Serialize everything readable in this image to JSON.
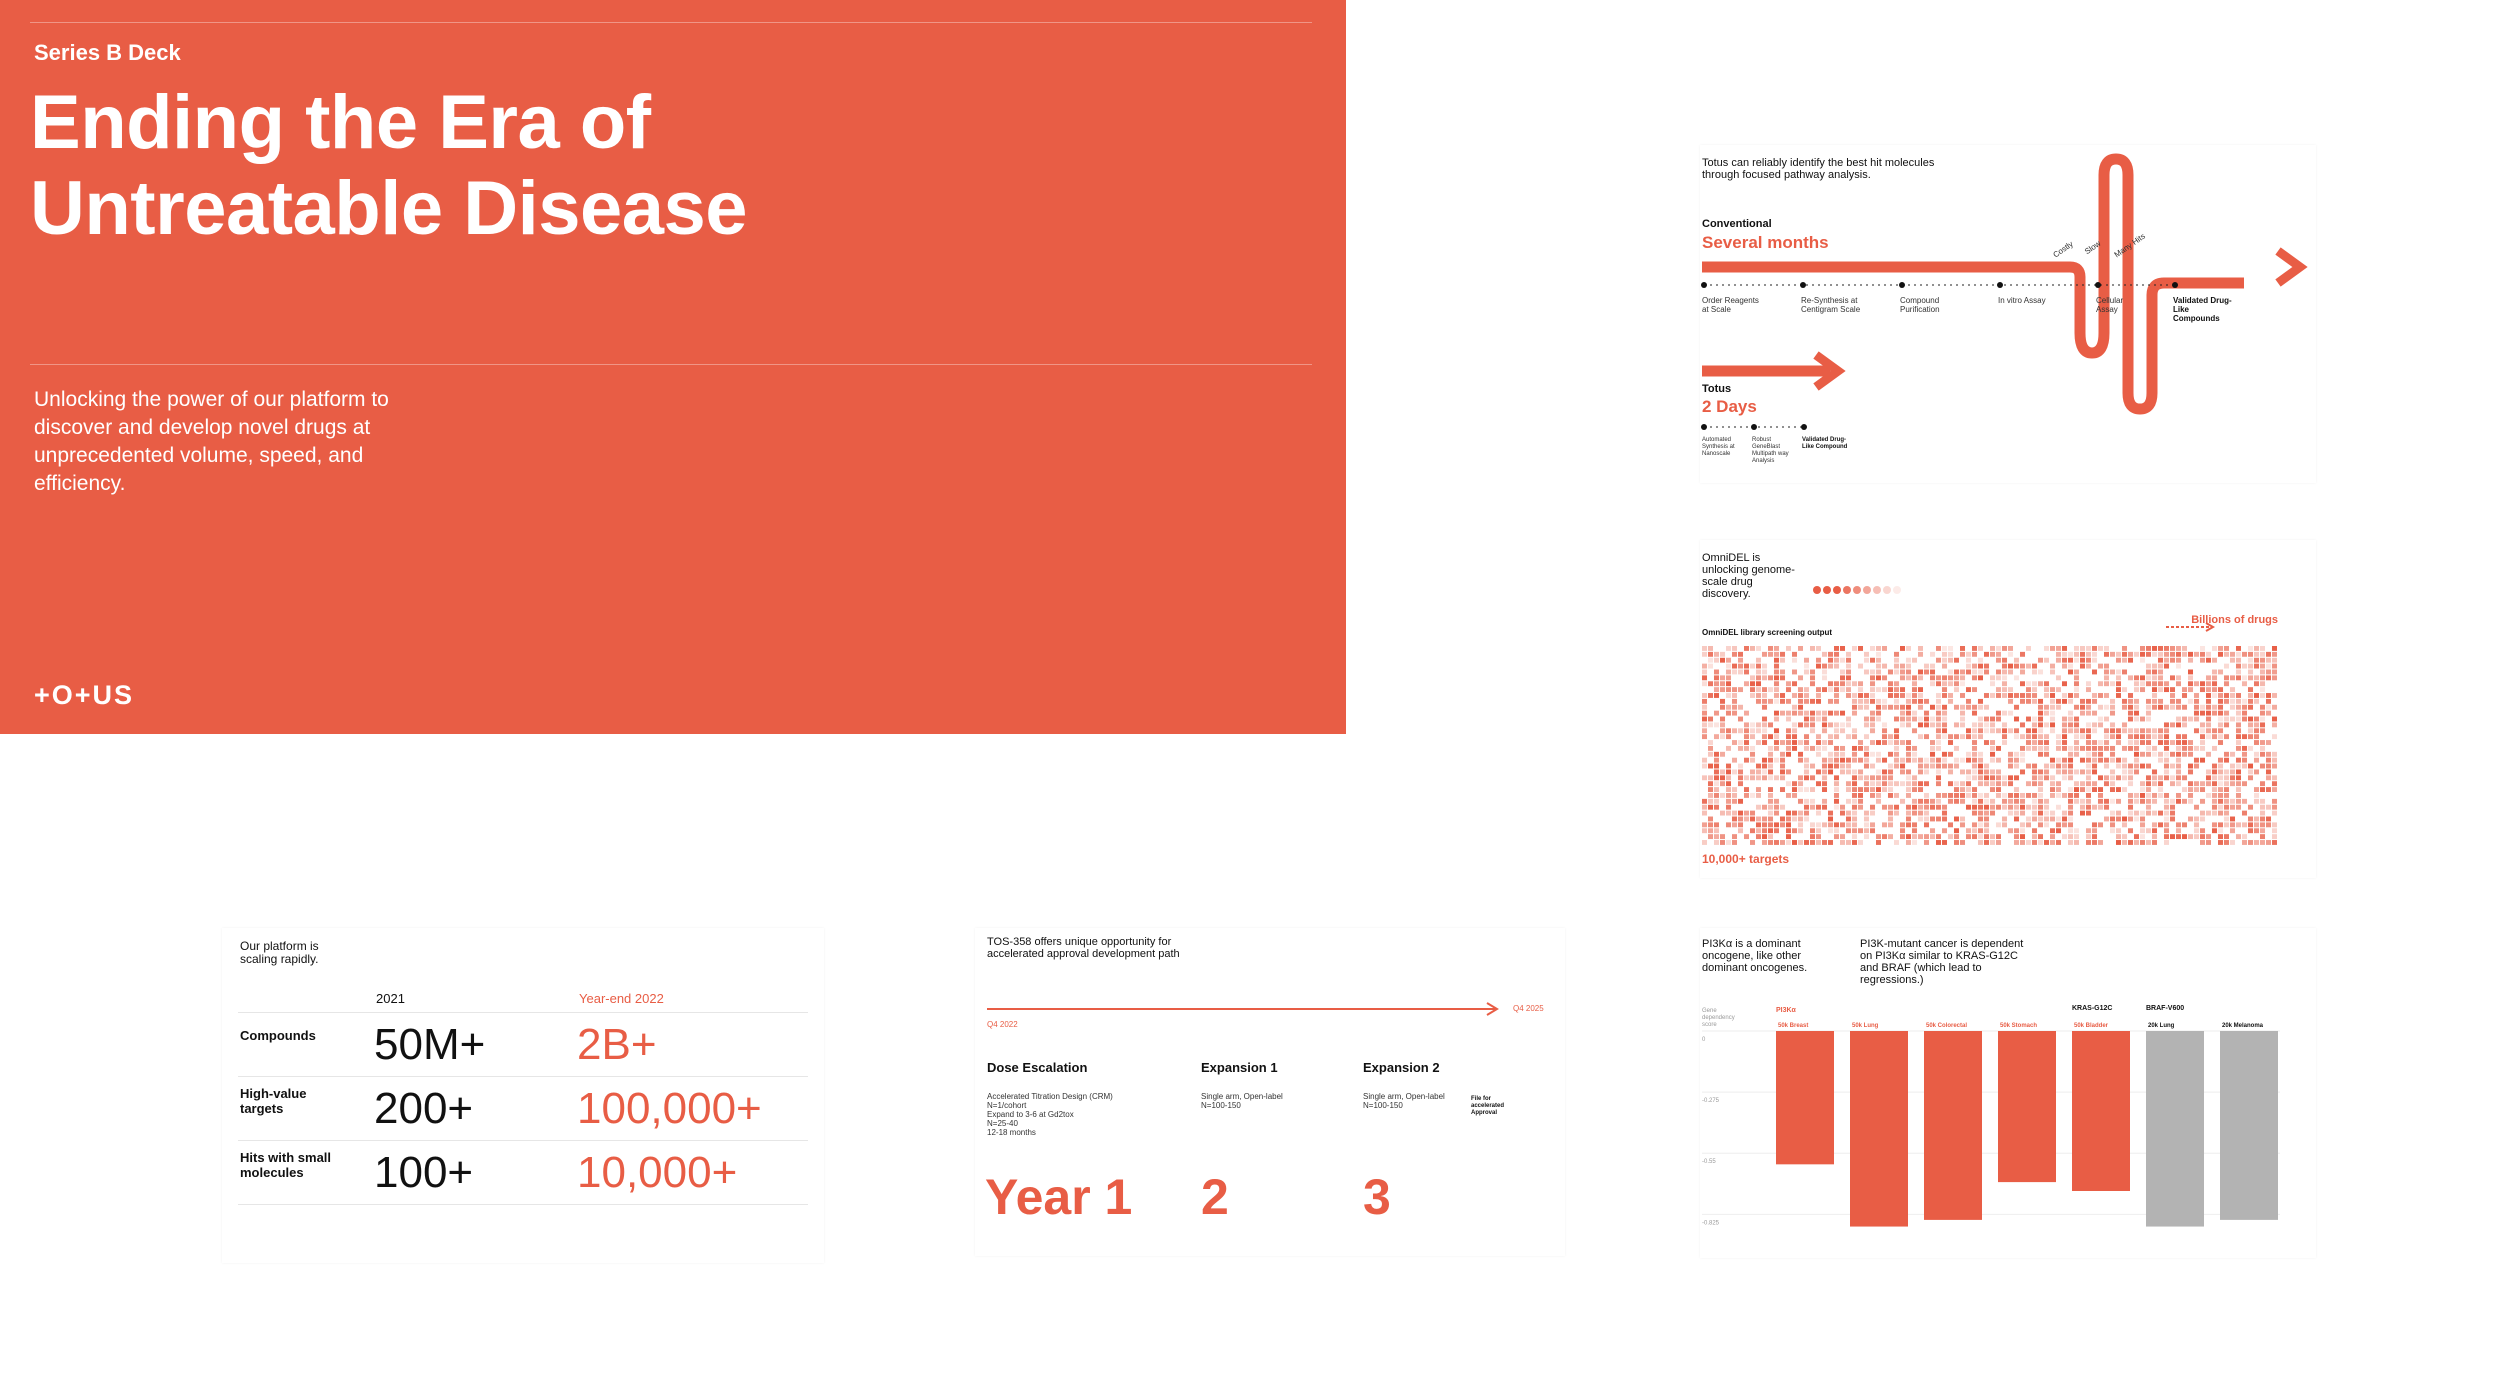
{
  "hero": {
    "eyebrow": "Series B Deck",
    "title_line1": "Ending the Era of",
    "title_line2": "Untreatable Disease",
    "subtitle": "Unlocking the power of our platform to discover and develop novel drugs at unprecedented volume, speed, and efficiency.",
    "logo": "+O+US"
  },
  "pathway": {
    "intro": "Totus can reliably identify the best hit molecules through focused pathway analysis.",
    "conventional_label": "Conventional",
    "conventional_time": "Several months",
    "steps": [
      "Order Reagents at Scale",
      "Re-Synthesis at Centigram Scale",
      "Compound Purification",
      "In vitro Assay",
      "Cellular Assay",
      "Validated Drug-Like Compounds"
    ],
    "curve_labels": [
      "Costly",
      "Slow",
      "Many Hits"
    ],
    "totus_label": "Totus",
    "totus_time": "2 Days",
    "totus_steps": [
      "Automated Synthesis at Nanoscale",
      "Robust GeneBlast Multipath way Analysis",
      "Validated Drug-Like Compound"
    ]
  },
  "omnidel": {
    "intro": "OmniDEL is unlocking genome-scale drug discovery.",
    "caption": "OmniDEL library screening output",
    "arrow_label": "Billions of drugs",
    "footer": "10,000+ targets",
    "orange": "#e85d45"
  },
  "stats": {
    "intro": "Our platform is scaling rapidly.",
    "col1": "2021",
    "col2": "Year-end 2022",
    "rows": [
      {
        "label": "Compounds",
        "v2021": "50M+",
        "v2022": "2B+"
      },
      {
        "label": "High-value targets",
        "v2021": "200+",
        "v2022": "100,000+"
      },
      {
        "label": "Hits with small molecules",
        "v2021": "100+",
        "v2022": "10,000+"
      }
    ]
  },
  "timeline": {
    "intro": "TOS-358 offers unique opportunity for accelerated approval development path",
    "start": "Q4 2022",
    "end": "Q4 2025",
    "phases": [
      {
        "title": "Dose Escalation",
        "detail": [
          "Accelerated Titration Design (CRM)",
          "N=1/cohort",
          "Expand to 3-6 at Gd2tox",
          "N=25-40",
          "12-18 months"
        ],
        "year": "Year 1"
      },
      {
        "title": "Expansion 1",
        "detail": [
          "Single arm, Open-label",
          "N=100-150"
        ],
        "year": "2"
      },
      {
        "title": "Expansion 2",
        "detail": [
          "Single arm, Open-label",
          "N=100-150"
        ],
        "year": "3"
      }
    ],
    "note": "File for accelerated Approval"
  },
  "pi3k": {
    "intro1": "PI3Kα is a dominant oncogene, like other dominant oncogenes.",
    "intro2": "PI3K-mutant cancer is dependent on PI3Kα similar to KRAS-G12C and BRAF (which lead to regressions.)",
    "group1": "PI3Kα",
    "group2": "KRAS-G12C",
    "group3": "BRAF-V600",
    "yaxis_title": "Gene dependency score",
    "yticks": [
      "0",
      "-0.275",
      "-0.55",
      "-0.825"
    ],
    "bars": [
      {
        "label": "50k Breast",
        "value": -0.6,
        "color": "#e85d45"
      },
      {
        "label": "50k Lung",
        "value": -0.88,
        "color": "#e85d45"
      },
      {
        "label": "50k Colorectal",
        "value": -0.85,
        "color": "#e85d45"
      },
      {
        "label": "50k Stomach",
        "value": -0.68,
        "color": "#e85d45"
      },
      {
        "label": "50k Bladder",
        "value": -0.72,
        "color": "#e85d45"
      },
      {
        "label": "20k Lung",
        "value": -0.88,
        "color": "#b3b3b3"
      },
      {
        "label": "20k Melanoma",
        "value": -0.85,
        "color": "#b3b3b3"
      }
    ]
  }
}
